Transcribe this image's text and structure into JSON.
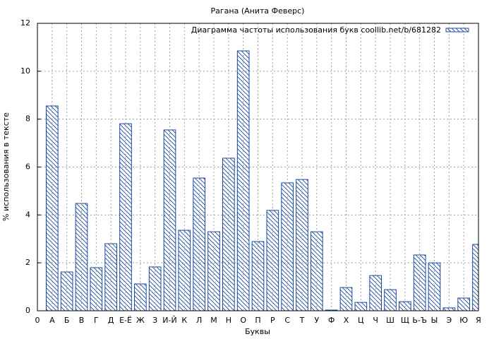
{
  "chart_data": {
    "type": "bar",
    "title": "Рагана (Анита Феверс)",
    "x_label": "Буквы",
    "y_label": "% использования в тексте",
    "categories": [
      "0",
      "А",
      "Б",
      "В",
      "Г",
      "Д",
      "Е-Ё",
      "Ж",
      "З",
      "И-Й",
      "К",
      "Л",
      "М",
      "Н",
      "О",
      "П",
      "Р",
      "С",
      "Т",
      "У",
      "Ф",
      "Х",
      "Ц",
      "Ч",
      "Ш",
      "Щ",
      "Ь-Ъ",
      "Ы",
      "Э",
      "Ю",
      "Я"
    ],
    "series": [
      {
        "name": "Диаграмма частоты использования букв coollib.net/b/681282",
        "color": "#1a4aa0",
        "values": [
          null,
          8.55,
          1.62,
          4.48,
          1.8,
          2.8,
          7.81,
          1.12,
          1.83,
          7.55,
          3.36,
          5.54,
          3.3,
          6.37,
          10.85,
          2.89,
          4.19,
          5.34,
          5.48,
          3.3,
          0.03,
          0.97,
          0.35,
          1.47,
          0.88,
          0.38,
          2.33,
          2.0,
          0.12,
          0.53,
          2.77
        ]
      }
    ],
    "ylim": [
      0,
      12
    ],
    "yticks": [
      0,
      2,
      4,
      6,
      8,
      10,
      12
    ],
    "grid": true,
    "legend": "top-right"
  }
}
